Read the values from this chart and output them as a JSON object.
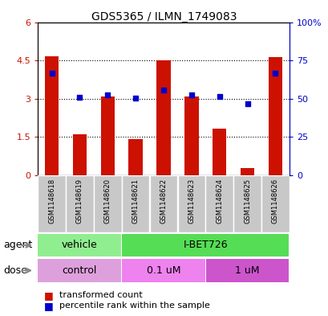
{
  "title": "GDS5365 / ILMN_1749083",
  "samples": [
    "GSM1148618",
    "GSM1148619",
    "GSM1148620",
    "GSM1148621",
    "GSM1148622",
    "GSM1148623",
    "GSM1148624",
    "GSM1148625",
    "GSM1148626"
  ],
  "red_values": [
    4.65,
    1.6,
    3.08,
    1.43,
    4.52,
    3.08,
    1.82,
    0.3,
    4.62
  ],
  "blue_values": [
    4.0,
    3.05,
    3.15,
    3.02,
    3.35,
    3.15,
    3.1,
    2.8,
    4.0
  ],
  "ylim_left": [
    0,
    6
  ],
  "ylim_right": [
    0,
    100
  ],
  "yticks_left": [
    0,
    1.5,
    3.0,
    4.5,
    6.0
  ],
  "yticks_right": [
    0,
    25,
    50,
    75,
    100
  ],
  "ytick_labels_left": [
    "0",
    "1.5",
    "3",
    "4.5",
    "6"
  ],
  "ytick_labels_right": [
    "0",
    "25",
    "50",
    "75",
    "100%"
  ],
  "agent_groups": [
    {
      "label": "vehicle",
      "start": 0,
      "end": 3,
      "color": "#90EE90"
    },
    {
      "label": "I-BET726",
      "start": 3,
      "end": 9,
      "color": "#55DD55"
    }
  ],
  "dose_groups": [
    {
      "label": "control",
      "start": 0,
      "end": 3,
      "color": "#DDA0DD"
    },
    {
      "label": "0.1 uM",
      "start": 3,
      "end": 6,
      "color": "#EE82EE"
    },
    {
      "label": "1 uM",
      "start": 6,
      "end": 9,
      "color": "#CC55CC"
    }
  ],
  "bar_color": "#CC1100",
  "dot_color": "#0000CC",
  "bar_width": 0.5,
  "legend_red": "transformed count",
  "legend_blue": "percentile rank within the sample",
  "agent_label": "agent",
  "dose_label": "dose",
  "label_bg": "#C8C8C8"
}
